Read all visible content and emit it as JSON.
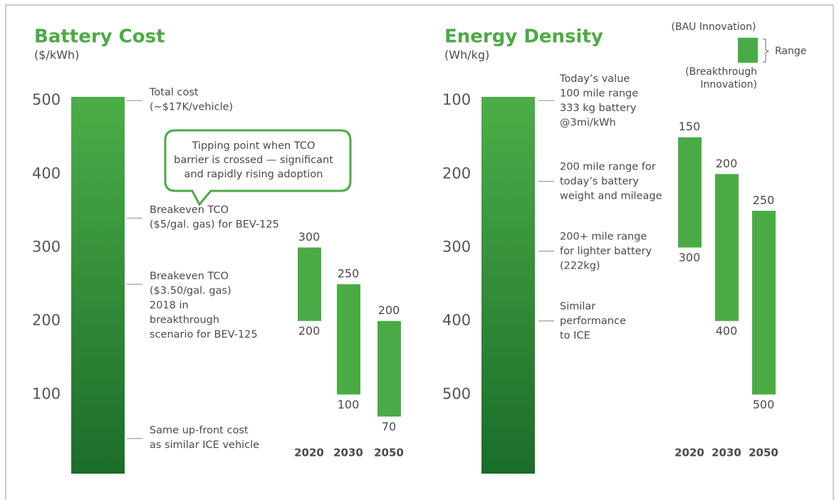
{
  "chart_data": [
    {
      "type": "range",
      "title": "Battery Cost",
      "subtitle": "($/kWh)",
      "categories": [
        "2020",
        "2030",
        "2050"
      ],
      "series": [
        {
          "color": "#4aab46",
          "values": [
            300,
            250,
            200
          ]
        },
        {
          "color": "#4aab46",
          "values": [
            200,
            100,
            70
          ]
        }
      ],
      "ylim": [
        0,
        505
      ],
      "yticks": [
        100,
        200,
        300,
        400,
        500
      ],
      "annotations": [
        {
          "lines": [
            "Total cost",
            "(~$17K/vehicle)"
          ],
          "value": 500
        },
        {
          "lines": [
            "Breakeven TCO",
            "($5/gal. gas) for BEV-125"
          ],
          "value": 340
        },
        {
          "lines": [
            "Breakeven TCO",
            "($3.50/gal. gas)",
            "2018 in",
            "breakthrough",
            "scenario for BEV-125"
          ],
          "value": 250
        },
        {
          "lines": [
            "Same up-front cost",
            "as similar ICE vehicle"
          ],
          "value": 40
        }
      ],
      "callout": [
        "Tipping point when TCO",
        "barrier is crossed — significant",
        "and rapidly rising adoption"
      ]
    },
    {
      "type": "range",
      "title": "Energy Density",
      "subtitle": "(Wh/kg)",
      "categories": [
        "2020",
        "2030",
        "2050"
      ],
      "series": [
        {
          "name": "(BAU Innovation)",
          "color": "#4aab46",
          "values": [
            150,
            200,
            250
          ]
        },
        {
          "name": "(Breakthrough Innovation)",
          "color": "#4aab46",
          "values": [
            300,
            400,
            500
          ]
        }
      ],
      "ylim": [
        600,
        95
      ],
      "yticks": [
        100,
        200,
        300,
        400,
        500
      ],
      "annotations": [
        {
          "lines": [
            "Today’s value",
            "100 mile range",
            "333 kg battery",
            "@3mi/kWh"
          ],
          "value": 100
        },
        {
          "lines": [
            "200 mile range for",
            "today’s battery",
            "weight and mileage"
          ],
          "value": 210
        },
        {
          "lines": [
            "200+ mile range",
            "for lighter battery",
            "(222kg)"
          ],
          "value": 305
        },
        {
          "lines": [
            "Similar",
            "performance",
            "to ICE"
          ],
          "value": 400
        }
      ],
      "legend": {
        "label": "Range"
      }
    }
  ]
}
